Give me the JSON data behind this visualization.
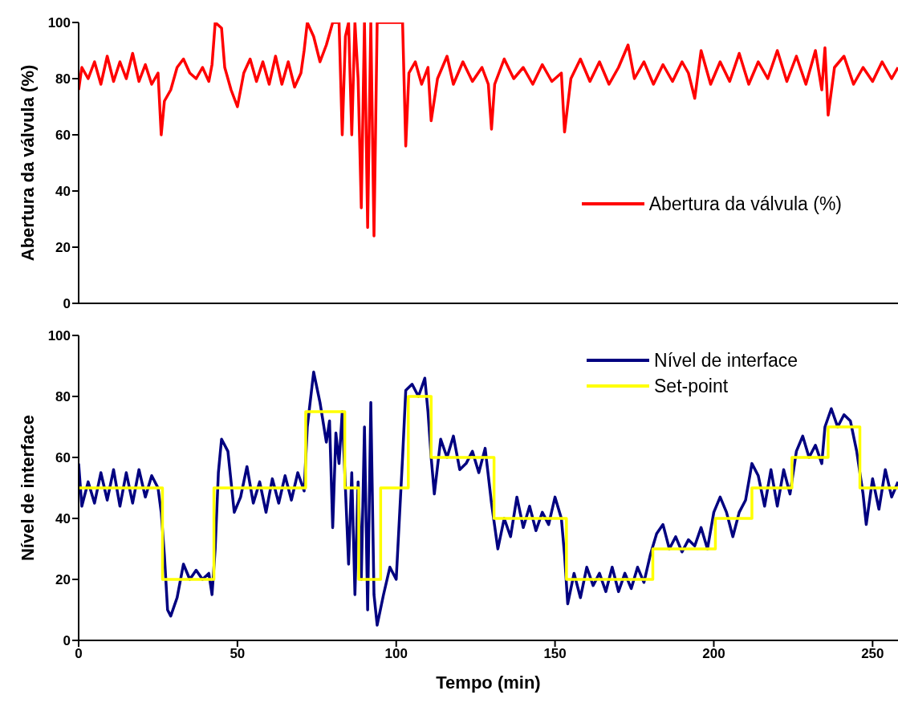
{
  "chart_data": [
    {
      "type": "line",
      "ylabel": "Abertura da válvula (%)",
      "xlim": [
        0,
        258
      ],
      "xticks": [
        0,
        50,
        100,
        150,
        200,
        250
      ],
      "ylim": [
        0,
        100
      ],
      "yticks": [
        0,
        20,
        40,
        60,
        80,
        100
      ],
      "tick_labels": "y",
      "legend": "right",
      "marker": "none",
      "line_style": "solid",
      "series": [
        {
          "name": "Abertura da válvula (%)",
          "color": "#ff0000",
          "x": [
            0,
            1,
            3,
            5,
            7,
            9,
            11,
            13,
            15,
            17,
            19,
            21,
            23,
            25,
            26,
            27,
            29,
            31,
            33,
            35,
            37,
            39,
            41,
            42,
            43,
            45,
            46,
            48,
            50,
            52,
            54,
            56,
            58,
            60,
            62,
            64,
            66,
            68,
            70,
            71,
            72,
            74,
            76,
            78,
            80,
            82,
            83,
            84,
            85,
            86,
            87,
            88,
            89,
            90,
            91,
            92,
            93,
            94,
            96,
            99,
            102,
            103,
            104,
            106,
            108,
            110,
            111,
            113,
            116,
            118,
            121,
            124,
            127,
            129,
            130,
            131,
            134,
            137,
            140,
            143,
            146,
            149,
            152,
            153,
            155,
            158,
            161,
            164,
            167,
            170,
            173,
            175,
            178,
            181,
            184,
            187,
            190,
            192,
            194,
            196,
            199,
            202,
            205,
            208,
            211,
            214,
            217,
            220,
            223,
            226,
            229,
            232,
            234,
            235,
            236,
            238,
            241,
            244,
            247,
            250,
            253,
            256,
            258
          ],
          "values": [
            76,
            84,
            80,
            86,
            78,
            88,
            79,
            86,
            80,
            89,
            79,
            85,
            78,
            82,
            60,
            72,
            76,
            84,
            87,
            82,
            80,
            84,
            79,
            85,
            100,
            98,
            84,
            76,
            70,
            82,
            87,
            79,
            86,
            78,
            88,
            78,
            86,
            77,
            82,
            90,
            100,
            95,
            86,
            92,
            100,
            100,
            60,
            95,
            100,
            60,
            100,
            80,
            34,
            100,
            27,
            100,
            24,
            100,
            100,
            100,
            100,
            56,
            82,
            86,
            78,
            84,
            65,
            80,
            88,
            78,
            86,
            79,
            84,
            78,
            62,
            78,
            87,
            80,
            84,
            78,
            85,
            79,
            82,
            61,
            80,
            87,
            79,
            86,
            78,
            84,
            92,
            80,
            86,
            78,
            85,
            79,
            86,
            82,
            73,
            90,
            78,
            86,
            79,
            89,
            78,
            86,
            80,
            90,
            79,
            88,
            78,
            90,
            76,
            91,
            67,
            84,
            88,
            78,
            84,
            79,
            86,
            80,
            84
          ]
        }
      ]
    },
    {
      "type": "line",
      "xlabel": "Tempo (min)",
      "ylabel": "Nível de interface",
      "xlim": [
        0,
        258
      ],
      "xticks": [
        0,
        50,
        100,
        150,
        200,
        250
      ],
      "ylim": [
        0,
        100
      ],
      "yticks": [
        0,
        20,
        40,
        60,
        80,
        100
      ],
      "legend": "top right",
      "marker": "none",
      "line_style": "solid",
      "series": [
        {
          "name": "Nível de interface",
          "color": "#000080",
          "x": [
            0,
            1,
            3,
            5,
            7,
            9,
            11,
            13,
            15,
            17,
            19,
            21,
            23,
            25,
            26,
            27,
            28,
            29,
            31,
            33,
            35,
            37,
            39,
            41,
            42,
            43,
            44,
            45,
            47,
            49,
            51,
            53,
            55,
            57,
            59,
            61,
            63,
            65,
            67,
            69,
            71,
            72,
            74,
            76,
            78,
            79,
            80,
            81,
            82,
            83,
            84,
            85,
            86,
            87,
            88,
            89,
            90,
            91,
            92,
            93,
            94,
            96,
            98,
            100,
            101,
            102,
            103,
            105,
            107,
            109,
            110,
            111,
            112,
            114,
            116,
            118,
            120,
            122,
            124,
            126,
            128,
            130,
            132,
            134,
            136,
            138,
            140,
            142,
            144,
            146,
            148,
            150,
            152,
            153,
            154,
            156,
            158,
            160,
            162,
            164,
            166,
            168,
            170,
            172,
            174,
            176,
            178,
            180,
            182,
            184,
            186,
            188,
            190,
            192,
            194,
            196,
            198,
            200,
            202,
            204,
            206,
            208,
            210,
            212,
            214,
            216,
            218,
            220,
            222,
            224,
            226,
            228,
            230,
            232,
            234,
            235,
            237,
            239,
            241,
            243,
            245,
            247,
            248,
            250,
            252,
            254,
            256,
            258
          ],
          "values": [
            58,
            44,
            52,
            45,
            55,
            46,
            56,
            44,
            55,
            45,
            56,
            47,
            54,
            50,
            42,
            28,
            10,
            8,
            14,
            25,
            20,
            23,
            20,
            22,
            15,
            30,
            55,
            66,
            62,
            42,
            47,
            57,
            45,
            52,
            42,
            53,
            45,
            54,
            46,
            55,
            49,
            70,
            88,
            78,
            65,
            72,
            37,
            68,
            58,
            75,
            50,
            25,
            55,
            15,
            52,
            20,
            70,
            10,
            78,
            15,
            5,
            15,
            24,
            20,
            40,
            60,
            82,
            84,
            80,
            86,
            75,
            60,
            48,
            66,
            60,
            67,
            56,
            58,
            62,
            55,
            63,
            45,
            30,
            40,
            34,
            47,
            37,
            44,
            36,
            42,
            38,
            47,
            40,
            28,
            12,
            22,
            14,
            24,
            18,
            22,
            16,
            24,
            16,
            22,
            17,
            24,
            19,
            28,
            35,
            38,
            30,
            34,
            29,
            33,
            31,
            37,
            30,
            42,
            47,
            42,
            34,
            42,
            46,
            58,
            54,
            44,
            56,
            44,
            56,
            48,
            62,
            67,
            60,
            64,
            58,
            70,
            76,
            70,
            74,
            72,
            62,
            48,
            38,
            53,
            43,
            56,
            47,
            52
          ]
        },
        {
          "name": "Set-point",
          "color": "#ffff00",
          "type": "step",
          "x": [
            0,
            26.4,
            42.6,
            71.5,
            83.8,
            88.2,
            95.1,
            103.8,
            111,
            130.8,
            153.6,
            180.8,
            200.5,
            212,
            224.6,
            236,
            246,
            258
          ],
          "values": [
            50,
            20,
            50,
            75,
            50,
            20,
            50,
            80,
            60,
            40,
            20,
            30,
            40,
            50,
            60,
            70,
            50,
            50
          ]
        }
      ]
    }
  ]
}
